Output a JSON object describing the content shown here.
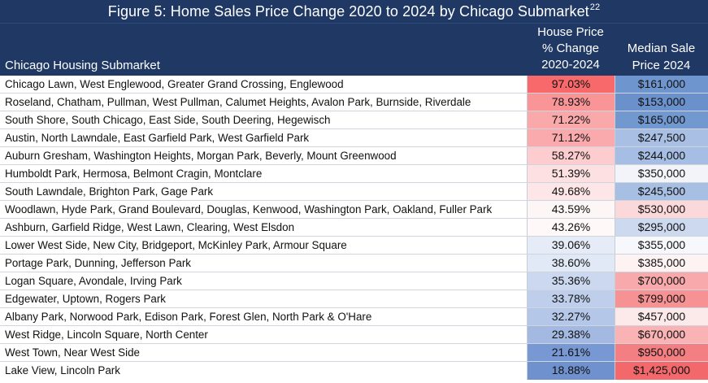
{
  "title": "Figure 5: Home Sales Price Change 2020 to 2024 by Chicago Submarket",
  "footnote": "22",
  "headers": {
    "submarket": "Chicago Housing Submarket",
    "pct_change": [
      "House Price",
      "% Change",
      "2020-2024"
    ],
    "median": [
      "Median Sale",
      "Price 2024"
    ]
  },
  "rows": [
    {
      "name": "Chicago Lawn, West Englewood, Greater Grand Crossing, Englewood",
      "pct": "97.03%",
      "median": "$161,000",
      "pct_color": "#f8696b",
      "median_color": "#6f95cf"
    },
    {
      "name": "Roseland, Chatham, Pullman, West Pullman, Calumet Heights, Avalon Park, Burnside, Riverdale",
      "pct": "78.93%",
      "median": "$153,000",
      "pct_color": "#f99597",
      "median_color": "#6b91cd"
    },
    {
      "name": "South Shore, South Chicago, East Side, South Deering, Hegewisch",
      "pct": "71.22%",
      "median": "$165,000",
      "pct_color": "#faa9ab",
      "median_color": "#7298d0"
    },
    {
      "name": "Austin, North Lawndale, East Garfield Park, West Garfield Park",
      "pct": "71.12%",
      "median": "$247,500",
      "pct_color": "#faaaac",
      "median_color": "#a9c0e4"
    },
    {
      "name": "Auburn Gresham, Washington Heights, Morgan Park, Beverly, Mount Greenwood",
      "pct": "58.27%",
      "median": "$244,000",
      "pct_color": "#fcccce",
      "median_color": "#a6bee3"
    },
    {
      "name": "Humboldt Park, Hermosa, Belmont Cragin, Montclare",
      "pct": "51.39%",
      "median": "$350,000",
      "pct_color": "#fde0e1",
      "median_color": "#f3f4fa"
    },
    {
      "name": "South Lawndale, Brighton Park, Gage Park",
      "pct": "49.68%",
      "median": "$245,500",
      "pct_color": "#fde6e7",
      "median_color": "#a8bfe4"
    },
    {
      "name": "Woodlawn, Hyde Park, Grand Boulevard, Douglas, Kenwood, Washington Park, Oakland, Fuller Park",
      "pct": "43.59%",
      "median": "$530,000",
      "pct_color": "#fdf6f6",
      "median_color": "#fbd8d9"
    },
    {
      "name": "Ashburn, Garfield Ridge, West Lawn, Clearing, West Elsdon",
      "pct": "43.26%",
      "median": "$295,000",
      "pct_color": "#fef8f8",
      "median_color": "#cdd9ef"
    },
    {
      "name": "Lower West Side, New City, Bridgeport, McKinley Park, Armour Square",
      "pct": "39.06%",
      "median": "$355,000",
      "pct_color": "#e6ecf7",
      "median_color": "#f7f8fc"
    },
    {
      "name": "Portage Park, Dunning, Jefferson Park",
      "pct": "38.60%",
      "median": "$385,000",
      "pct_color": "#e2e9f6",
      "median_color": "#fdf3f3"
    },
    {
      "name": "Logan Square, Avondale, Irving Park",
      "pct": "35.36%",
      "median": "$700,000",
      "pct_color": "#cbd8ef",
      "median_color": "#f8a9ab"
    },
    {
      "name": "Edgewater, Uptown, Rogers Park",
      "pct": "33.78%",
      "median": "$799,000",
      "pct_color": "#bfcfeb",
      "median_color": "#f69294"
    },
    {
      "name": "Albany Park, Norwood Park, Edison Park, Forest Glen, North Park & O'Hare",
      "pct": "32.27%",
      "median": "$457,000",
      "pct_color": "#b5c7e8",
      "median_color": "#fce9ea"
    },
    {
      "name": "West Ridge, Lincoln Square, North Center",
      "pct": "29.38%",
      "median": "$670,000",
      "pct_color": "#a3b9e2",
      "median_color": "#f9b3b5"
    },
    {
      "name": "West Town, Near West Side",
      "pct": "21.61%",
      "median": "$950,000",
      "pct_color": "#7798d2",
      "median_color": "#f47f82"
    },
    {
      "name": "Lake View, Lincoln Park",
      "pct": "18.88%",
      "median": "$1,425,000",
      "pct_color": "#6f92cf",
      "median_color": "#f2686b"
    }
  ]
}
